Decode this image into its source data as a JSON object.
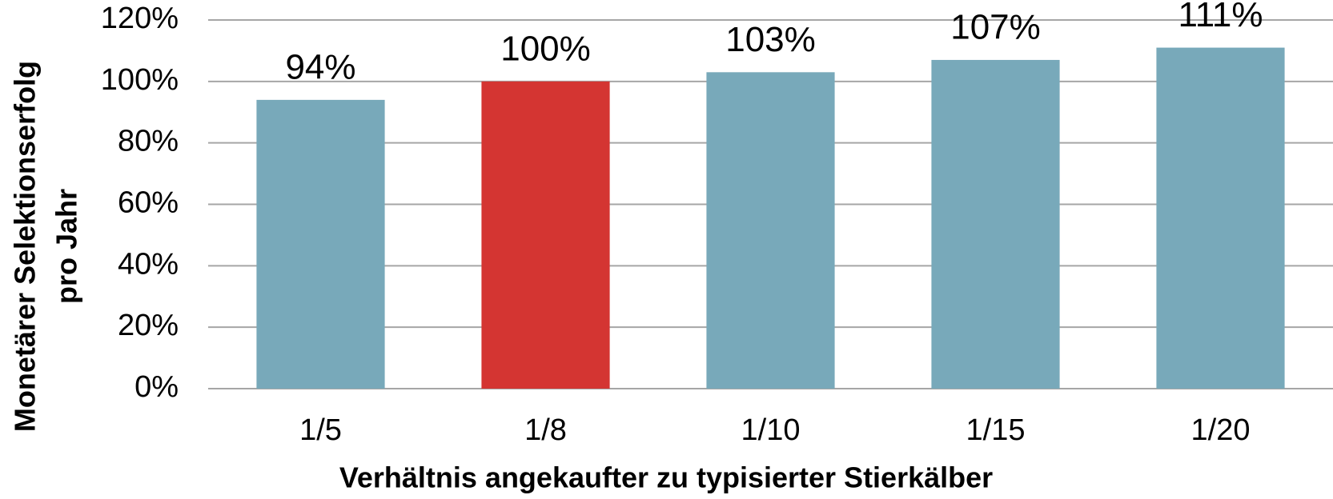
{
  "chart_data": {
    "type": "bar",
    "categories": [
      "1/5",
      "1/8",
      "1/10",
      "1/15",
      "1/20"
    ],
    "values": [
      94,
      100,
      103,
      107,
      111
    ],
    "value_labels": [
      "94%",
      "100%",
      "103%",
      "107%",
      "111%"
    ],
    "colors": [
      "#78a9ba",
      "#d43532",
      "#78a9ba",
      "#78a9ba",
      "#78a9ba"
    ],
    "ylim": [
      0,
      120
    ],
    "yticks": [
      {
        "value": 0,
        "label": "0%"
      },
      {
        "value": 20,
        "label": "20%"
      },
      {
        "value": 40,
        "label": "40%"
      },
      {
        "value": 60,
        "label": "60%"
      },
      {
        "value": 80,
        "label": "80%"
      },
      {
        "value": 100,
        "label": "100%"
      },
      {
        "value": 120,
        "label": "120%"
      }
    ],
    "xlabel": "Verhältnis angekaufter zu typisierter Stierkälber",
    "ylabel": [
      "Monetärer Selektionserfolg",
      "pro Jahr"
    ],
    "grid": true
  }
}
